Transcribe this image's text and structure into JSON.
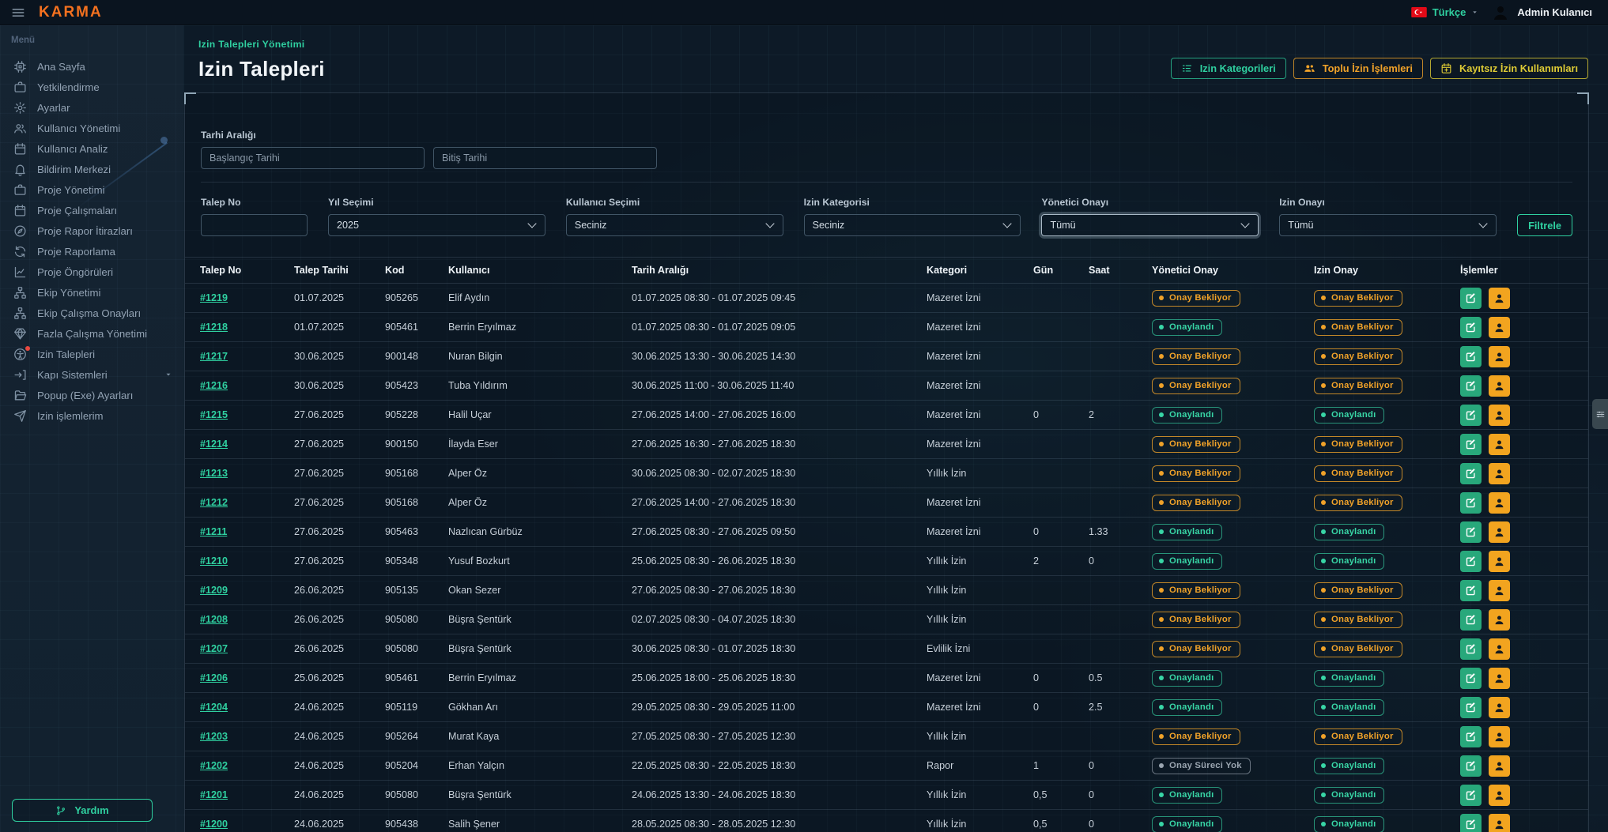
{
  "colors": {
    "brand_orange": "#f4711f",
    "accent_teal": "#2fd0a0",
    "accent_orange": "#f0a229",
    "accent_yellow": "#ddca35",
    "flag_red": "#e30a17",
    "badge_gray": "#9aa5b0",
    "edit_green": "#28a87b",
    "user_orange": "#f2a41f"
  },
  "topbar": {
    "logo": "KARMA",
    "language": "Türkçe",
    "user": "Admin Kulanıcı"
  },
  "sidebar": {
    "menu_label": "Menü",
    "help_label": "Yardım",
    "items": [
      {
        "label": "Ana Sayfa",
        "icon": "chip-icon"
      },
      {
        "label": "Yetkilendirme",
        "icon": "briefcase-icon"
      },
      {
        "label": "Ayarlar",
        "icon": "gear-icon"
      },
      {
        "label": "Kullanıcı Yönetimi",
        "icon": "users-icon"
      },
      {
        "label": "Kullanıcı Analiz",
        "icon": "calendar-icon"
      },
      {
        "label": "Bildirim Merkezi",
        "icon": "bell-icon"
      },
      {
        "label": "Proje Yönetimi",
        "icon": "briefcase-icon"
      },
      {
        "label": "Proje Çalışmaları",
        "icon": "calendar-icon"
      },
      {
        "label": "Proje Rapor İtirazları",
        "icon": "compass-icon"
      },
      {
        "label": "Proje Raporlama",
        "icon": "sync-icon"
      },
      {
        "label": "Proje Öngörüleri",
        "icon": "chart-line-icon"
      },
      {
        "label": "Ekip Yönetimi",
        "icon": "sitemap-icon"
      },
      {
        "label": "Ekip Çalışma Onayları",
        "icon": "sitemap-icon"
      },
      {
        "label": "Fazla Çalışma Yönetimi",
        "icon": "gem-icon"
      },
      {
        "label": "Izin Talepleri",
        "icon": "accessibility-icon",
        "badge": true
      },
      {
        "label": "Kapı Sistemleri",
        "icon": "signin-icon",
        "chevron": true
      },
      {
        "label": "Popup (Exe) Ayarları",
        "icon": "folder-open-icon"
      },
      {
        "label": "Izin işlemlerim",
        "icon": "send-icon"
      }
    ]
  },
  "page": {
    "breadcrumb": "Izin Talepleri Yönetimi",
    "title": "Izin Talepleri",
    "actions": [
      {
        "label": "Izin Kategorileri",
        "icon": "list-icon",
        "style": "teal"
      },
      {
        "label": "Toplu İzin İşlemleri",
        "icon": "users-group-icon",
        "style": "orange"
      },
      {
        "label": "Kayıtsız İzin Kullanımları",
        "icon": "calendar-plus-icon",
        "style": "yellow"
      }
    ]
  },
  "filters": {
    "date_range_label": "Tarhi Aralığı",
    "start_placeholder": "Başlangıç Tarihi",
    "end_placeholder": "Bitiş Tarihi",
    "talep_no_label": "Talep No",
    "talep_no_value": "",
    "yil_label": "Yıl Seçimi",
    "yil_value": "2025",
    "kullanici_label": "Kullanıcı Seçimi",
    "kullanici_value": "Seciniz",
    "kategori_label": "Izin Kategorisi",
    "kategori_value": "Seciniz",
    "yonetici_label": "Yönetici Onayı",
    "yonetici_value": "Tümü",
    "izin_label": "Izin Onayı",
    "izin_value": "Tümü",
    "filter_button": "Filtrele"
  },
  "table": {
    "columns": [
      "Talep No",
      "Talep Tarihi",
      "Kod",
      "Kullanıcı",
      "Tarih Aralığı",
      "Kategori",
      "Gün",
      "Saat",
      "Yönetici Onay",
      "Izin Onay",
      "İşlemler"
    ],
    "rows": [
      {
        "id": "#1219",
        "date": "01.07.2025",
        "code": "905265",
        "user": "Elif Aydın",
        "range": "01.07.2025 08:30 - 01.07.2025 09:45",
        "category": "Mazeret İzni",
        "day": "",
        "hour": "",
        "manager_status": "Onay Bekliyor",
        "leave_status": "Onay Bekliyor"
      },
      {
        "id": "#1218",
        "date": "01.07.2025",
        "code": "905461",
        "user": "Berrin Eryılmaz",
        "range": "01.07.2025 08:30 - 01.07.2025 09:05",
        "category": "Mazeret İzni",
        "day": "",
        "hour": "",
        "manager_status": "Onaylandı",
        "leave_status": "Onay Bekliyor"
      },
      {
        "id": "#1217",
        "date": "30.06.2025",
        "code": "900148",
        "user": "Nuran Bilgin",
        "range": "30.06.2025 13:30 - 30.06.2025 14:30",
        "category": "Mazeret İzni",
        "day": "",
        "hour": "",
        "manager_status": "Onay Bekliyor",
        "leave_status": "Onay Bekliyor"
      },
      {
        "id": "#1216",
        "date": "30.06.2025",
        "code": "905423",
        "user": "Tuba Yıldırım",
        "range": "30.06.2025 11:00 - 30.06.2025 11:40",
        "category": "Mazeret İzni",
        "day": "",
        "hour": "",
        "manager_status": "Onay Bekliyor",
        "leave_status": "Onay Bekliyor"
      },
      {
        "id": "#1215",
        "date": "27.06.2025",
        "code": "905228",
        "user": "Halil Uçar",
        "range": "27.06.2025 14:00 - 27.06.2025 16:00",
        "category": "Mazeret İzni",
        "day": "0",
        "hour": "2",
        "manager_status": "Onaylandı",
        "leave_status": "Onaylandı"
      },
      {
        "id": "#1214",
        "date": "27.06.2025",
        "code": "900150",
        "user": "İlayda Eser",
        "range": "27.06.2025 16:30 - 27.06.2025 18:30",
        "category": "Mazeret İzni",
        "day": "",
        "hour": "",
        "manager_status": "Onay Bekliyor",
        "leave_status": "Onay Bekliyor"
      },
      {
        "id": "#1213",
        "date": "27.06.2025",
        "code": "905168",
        "user": "Alper Öz",
        "range": "30.06.2025 08:30 - 02.07.2025 18:30",
        "category": "Yıllık İzin",
        "day": "",
        "hour": "",
        "manager_status": "Onay Bekliyor",
        "leave_status": "Onay Bekliyor"
      },
      {
        "id": "#1212",
        "date": "27.06.2025",
        "code": "905168",
        "user": "Alper Öz",
        "range": "27.06.2025 14:00 - 27.06.2025 18:30",
        "category": "Mazeret İzni",
        "day": "",
        "hour": "",
        "manager_status": "Onay Bekliyor",
        "leave_status": "Onay Bekliyor"
      },
      {
        "id": "#1211",
        "date": "27.06.2025",
        "code": "905463",
        "user": "Nazlıcan Gürbüz",
        "range": "27.06.2025 08:30 - 27.06.2025 09:50",
        "category": "Mazeret İzni",
        "day": "0",
        "hour": "1.33",
        "manager_status": "Onaylandı",
        "leave_status": "Onaylandı"
      },
      {
        "id": "#1210",
        "date": "27.06.2025",
        "code": "905348",
        "user": "Yusuf Bozkurt",
        "range": "25.06.2025 08:30 - 26.06.2025 18:30",
        "category": "Yıllık İzin",
        "day": "2",
        "hour": "0",
        "manager_status": "Onaylandı",
        "leave_status": "Onaylandı"
      },
      {
        "id": "#1209",
        "date": "26.06.2025",
        "code": "905135",
        "user": "Okan Sezer",
        "range": "27.06.2025 08:30 - 27.06.2025 18:30",
        "category": "Yıllık İzin",
        "day": "",
        "hour": "",
        "manager_status": "Onay Bekliyor",
        "leave_status": "Onay Bekliyor"
      },
      {
        "id": "#1208",
        "date": "26.06.2025",
        "code": "905080",
        "user": "Büşra Şentürk",
        "range": "02.07.2025 08:30 - 04.07.2025 18:30",
        "category": "Yıllık İzin",
        "day": "",
        "hour": "",
        "manager_status": "Onay Bekliyor",
        "leave_status": "Onay Bekliyor"
      },
      {
        "id": "#1207",
        "date": "26.06.2025",
        "code": "905080",
        "user": "Büşra Şentürk",
        "range": "30.06.2025 08:30 - 01.07.2025 18:30",
        "category": "Evlilik İzni",
        "day": "",
        "hour": "",
        "manager_status": "Onay Bekliyor",
        "leave_status": "Onay Bekliyor"
      },
      {
        "id": "#1206",
        "date": "25.06.2025",
        "code": "905461",
        "user": "Berrin Eryılmaz",
        "range": "25.06.2025 18:00 - 25.06.2025 18:30",
        "category": "Mazeret İzni",
        "day": "0",
        "hour": "0.5",
        "manager_status": "Onaylandı",
        "leave_status": "Onaylandı"
      },
      {
        "id": "#1204",
        "date": "24.06.2025",
        "code": "905119",
        "user": "Gökhan Arı",
        "range": "29.05.2025 08:30 - 29.05.2025 11:00",
        "category": "Mazeret İzni",
        "day": "0",
        "hour": "2.5",
        "manager_status": "Onaylandı",
        "leave_status": "Onaylandı"
      },
      {
        "id": "#1203",
        "date": "24.06.2025",
        "code": "905264",
        "user": "Murat Kaya",
        "range": "27.05.2025 08:30 - 27.05.2025 12:30",
        "category": "Yıllık İzin",
        "day": "",
        "hour": "",
        "manager_status": "Onay Bekliyor",
        "leave_status": "Onay Bekliyor"
      },
      {
        "id": "#1202",
        "date": "24.06.2025",
        "code": "905204",
        "user": "Erhan Yalçın",
        "range": "22.05.2025 08:30 - 22.05.2025 18:30",
        "category": "Rapor",
        "day": "1",
        "hour": "0",
        "manager_status": "Onay Süreci Yok",
        "leave_status": "Onaylandı"
      },
      {
        "id": "#1201",
        "date": "24.06.2025",
        "code": "905080",
        "user": "Büşra Şentürk",
        "range": "24.06.2025 13:30 - 24.06.2025 18:30",
        "category": "Yıllık İzin",
        "day": "0,5",
        "hour": "0",
        "manager_status": "Onaylandı",
        "leave_status": "Onaylandı"
      },
      {
        "id": "#1200",
        "date": "24.06.2025",
        "code": "905438",
        "user": "Salih Şener",
        "range": "28.05.2025 08:30 - 28.05.2025 12:30",
        "category": "Yıllık İzin",
        "day": "0,5",
        "hour": "0",
        "manager_status": "Onaylandı",
        "leave_status": "Onaylandı"
      }
    ]
  }
}
